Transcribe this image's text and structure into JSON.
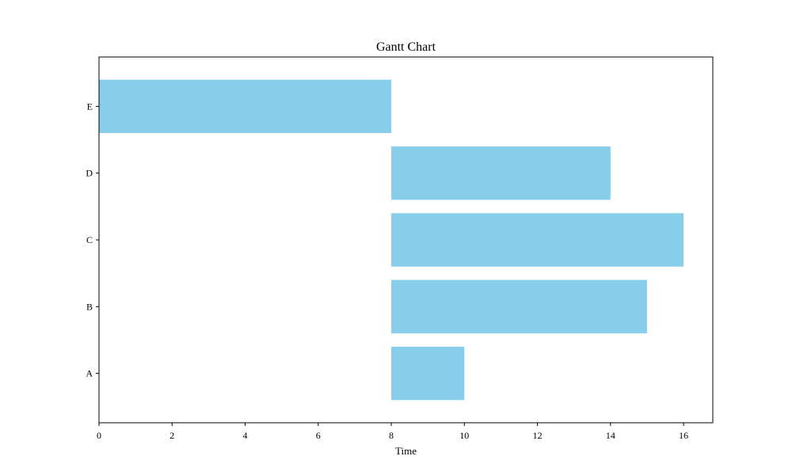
{
  "chart_data": {
    "type": "bar",
    "orientation": "horizontal",
    "title": "Gantt Chart",
    "xlabel": "Time",
    "ylabel": "",
    "xlim": [
      0,
      16.8
    ],
    "xticks": [
      0,
      2,
      4,
      6,
      8,
      10,
      12,
      14,
      16
    ],
    "grid": false,
    "bar_color": "#87CEEB",
    "tasks": [
      {
        "label": "A",
        "start": 8,
        "end": 10
      },
      {
        "label": "B",
        "start": 8,
        "end": 15
      },
      {
        "label": "C",
        "start": 8,
        "end": 16
      },
      {
        "label": "D",
        "start": 8,
        "end": 14
      },
      {
        "label": "E",
        "start": 0,
        "end": 8
      }
    ]
  }
}
